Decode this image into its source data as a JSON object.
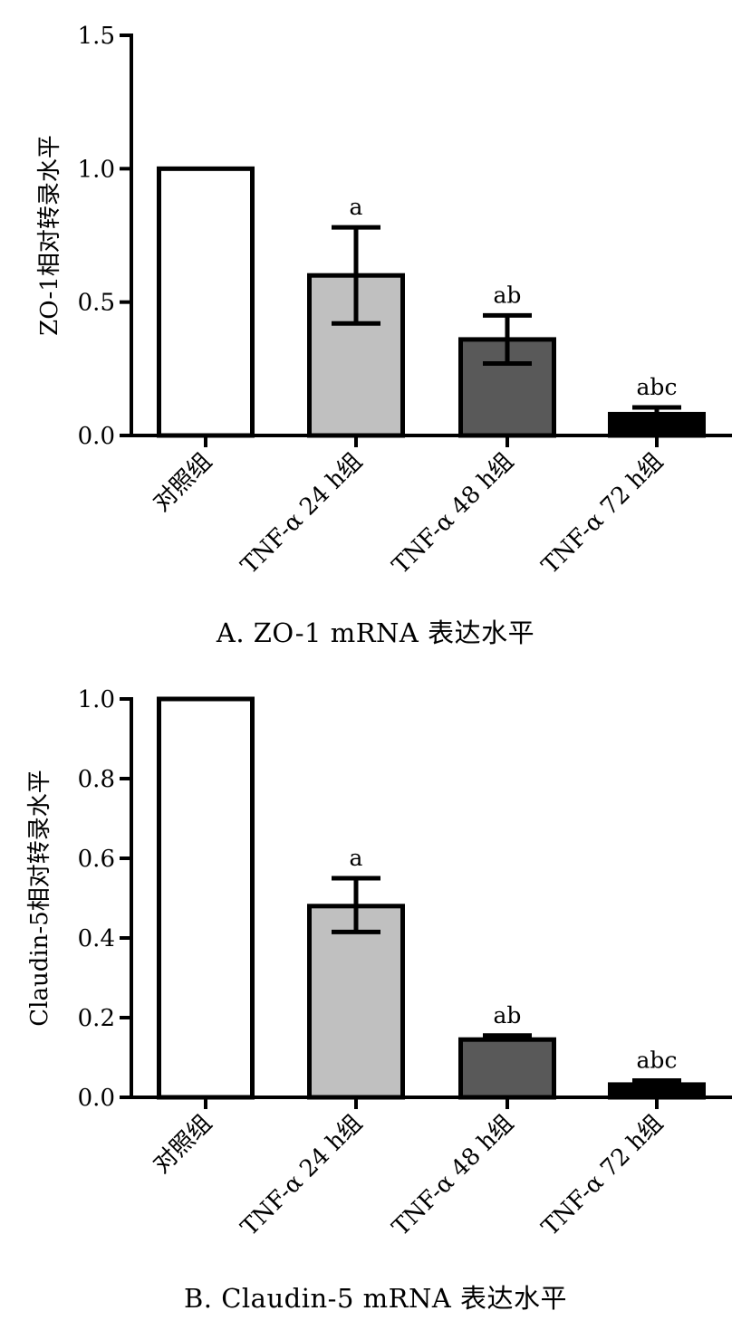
{
  "chart_data": [
    {
      "type": "bar",
      "title": "A. ZO-1 mRNA 表达水平",
      "ylabel": "ZO-1相对转录水平",
      "xlabel": "",
      "categories": [
        "对照组",
        "TNF-α 24 h组",
        "TNF-α 48 h组",
        "TNF-α 72 h组"
      ],
      "values": [
        1.0,
        0.6,
        0.36,
        0.08
      ],
      "error_plus": [
        0,
        0.18,
        0.09,
        0.025
      ],
      "error_minus": [
        0,
        0.18,
        0.09,
        0
      ],
      "significance": [
        "",
        "a",
        "ab",
        "abc"
      ],
      "bar_colors": [
        "#ffffff",
        "#c0c0c0",
        "#595959",
        "#000000"
      ],
      "ylim": [
        0,
        1.5
      ],
      "yticks": [
        0.0,
        0.5,
        1.0,
        1.5
      ],
      "ytick_labels": [
        "0.0",
        "0.5",
        "1.0",
        "1.5"
      ],
      "grid": false,
      "legend": "none"
    },
    {
      "type": "bar",
      "title": "B. Claudin-5 mRNA 表达水平",
      "ylabel": "Claudin-5相对转录水平",
      "xlabel": "",
      "categories": [
        "对照组",
        "TNF-α 24 h组",
        "TNF-α 48 h组",
        "TNF-α 72 h组"
      ],
      "values": [
        1.0,
        0.48,
        0.145,
        0.032
      ],
      "error_plus": [
        0,
        0.07,
        0.01,
        0.01
      ],
      "error_minus": [
        0,
        0.065,
        0,
        0
      ],
      "significance": [
        "",
        "a",
        "ab",
        "abc"
      ],
      "bar_colors": [
        "#ffffff",
        "#c0c0c0",
        "#595959",
        "#000000"
      ],
      "ylim": [
        0,
        1.0
      ],
      "yticks": [
        0.0,
        0.2,
        0.4,
        0.6,
        0.8,
        1.0
      ],
      "ytick_labels": [
        "0.0",
        "0.2",
        "0.4",
        "0.6",
        "0.8",
        "1.0"
      ],
      "grid": false,
      "legend": "none"
    }
  ]
}
